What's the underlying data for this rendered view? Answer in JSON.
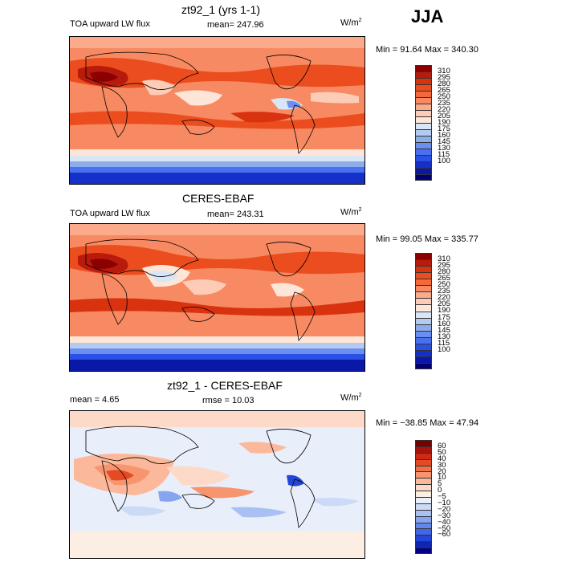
{
  "season": "JJA",
  "unit_base": "W/m",
  "unit_sup": "2",
  "panels": [
    {
      "title": "zt92_1 (yrs 1-1)",
      "left_label": "TOA upward LW flux",
      "stat_text": "mean=  247.96",
      "minmax": "Min =   91.64  Max =  340.30",
      "colorbar": {
        "colors": [
          "#8b0000",
          "#b81a0c",
          "#d8320f",
          "#ec4d1e",
          "#f4693c",
          "#f78a62",
          "#fbab8c",
          "#fdccb6",
          "#fde6d8",
          "#d9e6f6",
          "#b3cbf0",
          "#8cacec",
          "#6b8ff0",
          "#4a70f0",
          "#2a50e6",
          "#1530c8",
          "#0a18a8",
          "#02006e"
        ],
        "labels": [
          "310",
          "295",
          "280",
          "265",
          "250",
          "235",
          "220",
          "205",
          "190",
          "175",
          "160",
          "145",
          "130",
          "115",
          "100"
        ]
      }
    },
    {
      "title": "CERES-EBAF",
      "left_label": "TOA upward LW flux",
      "stat_text": "mean=  243.31",
      "minmax": "Min =   99.05  Max =  335.77",
      "colorbar": {
        "colors": [
          "#8b0000",
          "#b81a0c",
          "#d8320f",
          "#ec4d1e",
          "#f4693c",
          "#f78a62",
          "#fbab8c",
          "#fdccb6",
          "#fde6d8",
          "#d9e6f6",
          "#b3cbf0",
          "#8cacec",
          "#6b8ff0",
          "#4a70f0",
          "#2a50e6",
          "#1530c8",
          "#0a18a8",
          "#02006e"
        ],
        "labels": [
          "310",
          "295",
          "280",
          "265",
          "250",
          "235",
          "220",
          "205",
          "190",
          "175",
          "160",
          "145",
          "130",
          "115",
          "100"
        ]
      }
    },
    {
      "title": "zt92_1 - CERES-EBAF",
      "left_label": "mean =    4.65",
      "stat_text": "rmse =   10.03",
      "minmax": "Min = −38.85  Max =   47.94",
      "colorbar": {
        "colors": [
          "#7a0000",
          "#a8140c",
          "#cc2a12",
          "#e44a24",
          "#f27048",
          "#f7956f",
          "#fbb89a",
          "#fdd9c7",
          "#fdeee4",
          "#e8eefa",
          "#cbdaf6",
          "#a9c1f2",
          "#86a4ef",
          "#6385ee",
          "#4266eb",
          "#2446d8",
          "#0e26b4",
          "#02008a"
        ],
        "labels": [
          "60",
          "50",
          "40",
          "30",
          "20",
          "10",
          "5",
          "0",
          "−5",
          "−10",
          "−20",
          "−30",
          "−40",
          "−50",
          "−60"
        ]
      }
    }
  ]
}
